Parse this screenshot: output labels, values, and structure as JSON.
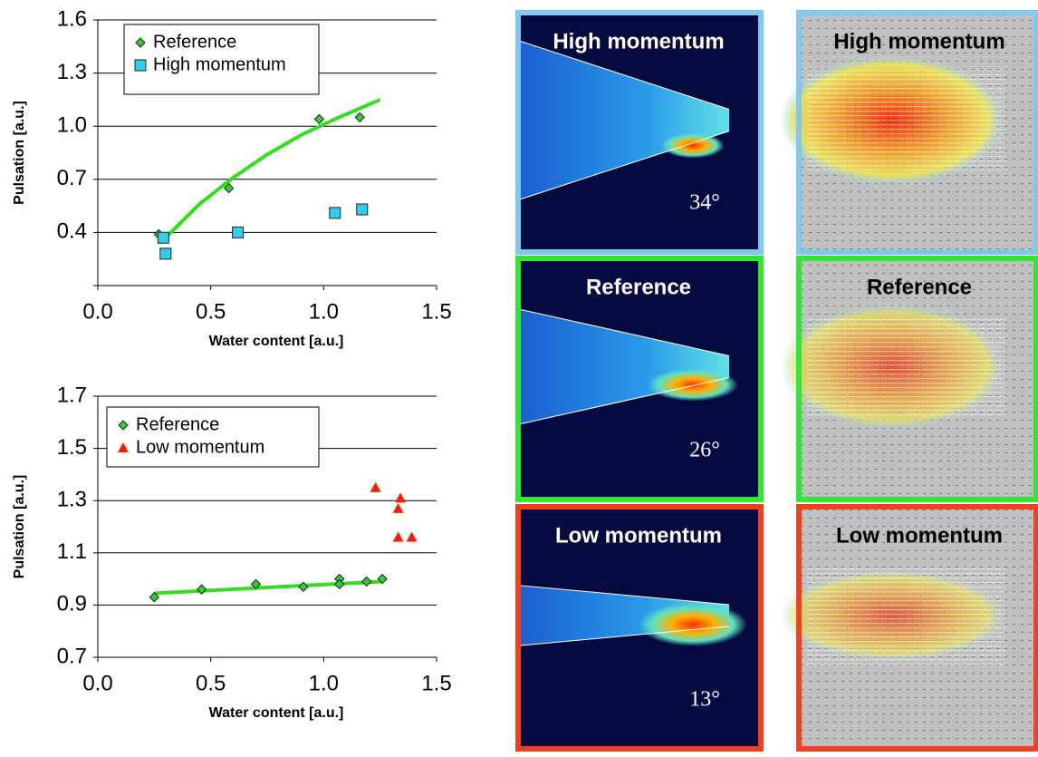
{
  "chart_data": [
    {
      "type": "scatter",
      "xlabel": "Water content [a.u.]",
      "ylabel": "Pulsation [a.u.]",
      "xlim": [
        0,
        1.5
      ],
      "xticks": [
        {
          "value": 0,
          "label": "0.0"
        },
        0.5,
        {
          "value": 1,
          "label": "1.0"
        },
        1.5
      ],
      "ylim": [
        0.1,
        1.6
      ],
      "yticks": [
        0.4,
        0.7,
        {
          "value": 1,
          "label": "1.0"
        },
        1.3,
        1.6
      ],
      "grid": true,
      "legend": "top-left",
      "series": [
        {
          "name": "Reference",
          "color": "#33cc33",
          "marker": "diamond",
          "x": [
            0.27,
            0.58,
            0.98,
            1.16
          ],
          "values": [
            0.39,
            0.65,
            1.04,
            1.05
          ]
        },
        {
          "name": "High momentum",
          "color": "#33ccee",
          "marker": "square",
          "x": [
            0.29,
            0.3,
            0.62,
            1.05,
            1.17
          ],
          "values": [
            0.37,
            0.28,
            0.4,
            0.51,
            0.53
          ]
        }
      ],
      "trendline": {
        "color": "#33dd22",
        "x": [
          0.3,
          0.45,
          0.6,
          0.75,
          0.9,
          1.05,
          1.25
        ],
        "values": [
          0.37,
          0.56,
          0.71,
          0.84,
          0.95,
          1.04,
          1.15
        ]
      }
    },
    {
      "type": "scatter",
      "xlabel": "Water content [a.u.]",
      "ylabel": "Pulsation [a.u.]",
      "xlim": [
        0,
        1.5
      ],
      "xticks": [
        {
          "value": 0,
          "label": "0.0"
        },
        0.5,
        {
          "value": 1,
          "label": "1.0"
        },
        1.5
      ],
      "ylim": [
        0.7,
        1.7
      ],
      "yticks": [
        0.7,
        0.9,
        1.1,
        1.3,
        1.5,
        1.7
      ],
      "grid": true,
      "legend": "top-left",
      "series": [
        {
          "name": "Reference",
          "color": "#33cc33",
          "marker": "diamond",
          "x": [
            0.25,
            0.46,
            0.7,
            0.91,
            1.07,
            1.07,
            1.19,
            1.26
          ],
          "values": [
            0.93,
            0.96,
            0.98,
            0.97,
            1.0,
            0.98,
            0.99,
            1.0
          ]
        },
        {
          "name": "Low momentum",
          "color": "#ee2200",
          "marker": "triangle",
          "x": [
            1.23,
            1.34,
            1.33,
            1.33,
            1.39
          ],
          "values": [
            1.35,
            1.31,
            1.27,
            1.16,
            1.16
          ]
        }
      ],
      "trendline": {
        "color": "#33dd22",
        "x": [
          0.25,
          1.26
        ],
        "values": [
          0.945,
          0.99
        ]
      }
    }
  ],
  "panels": [
    {
      "title": "High momentum",
      "angle": "34°",
      "border": "#80c8f0"
    },
    {
      "title": "Reference",
      "angle": "26°",
      "border": "#33e633"
    },
    {
      "title": "Low momentum",
      "angle": "13°",
      "border": "#f04020"
    }
  ],
  "vector_panels": [
    {
      "title": "High momentum",
      "border": "#80c8f0"
    },
    {
      "title": "Reference",
      "border": "#33e633"
    },
    {
      "title": "Low momentum",
      "border": "#f04020"
    }
  ]
}
